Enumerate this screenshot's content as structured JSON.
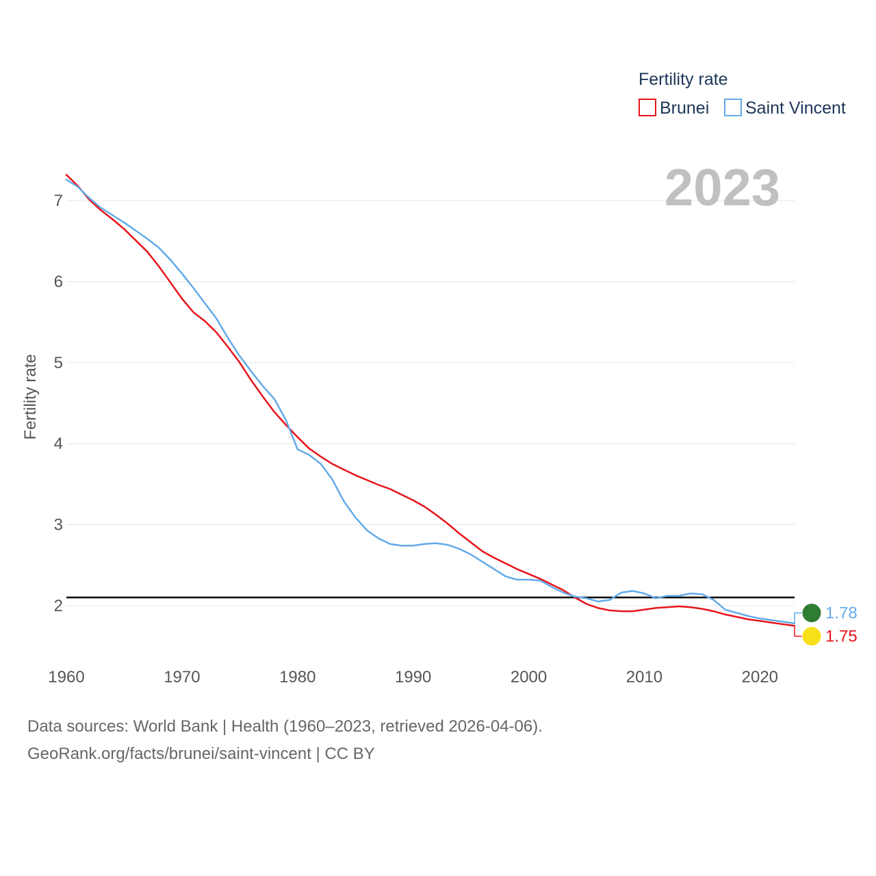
{
  "chart_data": {
    "type": "line",
    "title": "Fertility rate",
    "ylabel": "Fertility rate",
    "xlabel": "",
    "xlim": [
      1960,
      2023
    ],
    "ylim": [
      1.5,
      7.45
    ],
    "x_ticks": [
      1960,
      1970,
      1980,
      1990,
      2000,
      2010,
      2020
    ],
    "y_ticks": [
      2,
      3,
      4,
      5,
      6,
      7
    ],
    "grid": true,
    "legend_title": "Fertility rate",
    "legend_position": "top-right",
    "year_label": "2023",
    "reference_line": {
      "value": 2.1
    },
    "x": [
      1960,
      1961,
      1962,
      1963,
      1964,
      1965,
      1966,
      1967,
      1968,
      1969,
      1970,
      1971,
      1972,
      1973,
      1974,
      1975,
      1976,
      1977,
      1978,
      1979,
      1980,
      1981,
      1982,
      1983,
      1984,
      1985,
      1986,
      1987,
      1988,
      1989,
      1990,
      1991,
      1992,
      1993,
      1994,
      1995,
      1996,
      1997,
      1998,
      1999,
      2000,
      2001,
      2002,
      2003,
      2004,
      2005,
      2006,
      2007,
      2008,
      2009,
      2010,
      2011,
      2012,
      2013,
      2014,
      2015,
      2016,
      2017,
      2018,
      2019,
      2020,
      2021,
      2022,
      2023
    ],
    "series": [
      {
        "name": "Brunei",
        "color": "#e8131a",
        "end_label": "1.75",
        "values": [
          7.32,
          7.18,
          7.01,
          6.88,
          6.77,
          6.65,
          6.51,
          6.37,
          6.19,
          5.99,
          5.79,
          5.62,
          5.51,
          5.37,
          5.19,
          5.0,
          4.78,
          4.58,
          4.39,
          4.23,
          4.08,
          3.94,
          3.84,
          3.75,
          3.68,
          3.61,
          3.55,
          3.49,
          3.44,
          3.37,
          3.3,
          3.22,
          3.12,
          3.01,
          2.89,
          2.78,
          2.67,
          2.59,
          2.52,
          2.45,
          2.39,
          2.33,
          2.26,
          2.19,
          2.1,
          2.02,
          1.97,
          1.94,
          1.93,
          1.93,
          1.95,
          1.97,
          1.98,
          1.99,
          1.98,
          1.96,
          1.93,
          1.89,
          1.86,
          1.83,
          1.81,
          1.79,
          1.77,
          1.75
        ]
      },
      {
        "name": "Saint Vincent",
        "color": "#62aae8",
        "end_label": "1.78",
        "values": [
          7.26,
          7.17,
          7.03,
          6.91,
          6.82,
          6.73,
          6.63,
          6.53,
          6.42,
          6.27,
          6.1,
          5.92,
          5.73,
          5.54,
          5.3,
          5.08,
          4.89,
          4.71,
          4.55,
          4.29,
          3.93,
          3.86,
          3.75,
          3.56,
          3.29,
          3.09,
          2.93,
          2.83,
          2.76,
          2.74,
          2.74,
          2.76,
          2.77,
          2.75,
          2.7,
          2.63,
          2.54,
          2.45,
          2.36,
          2.32,
          2.32,
          2.31,
          2.23,
          2.16,
          2.11,
          2.09,
          2.05,
          2.07,
          2.16,
          2.18,
          2.15,
          2.09,
          2.12,
          2.12,
          2.15,
          2.14,
          2.07,
          1.95,
          1.91,
          1.87,
          1.84,
          1.82,
          1.8,
          1.78
        ]
      }
    ]
  },
  "footer": {
    "line1": "Data sources: World Bank | Health (1960–2023, retrieved 2026-04-06).",
    "line2": "GeoRank.org/facts/brunei/saint-vincent | CC BY"
  }
}
